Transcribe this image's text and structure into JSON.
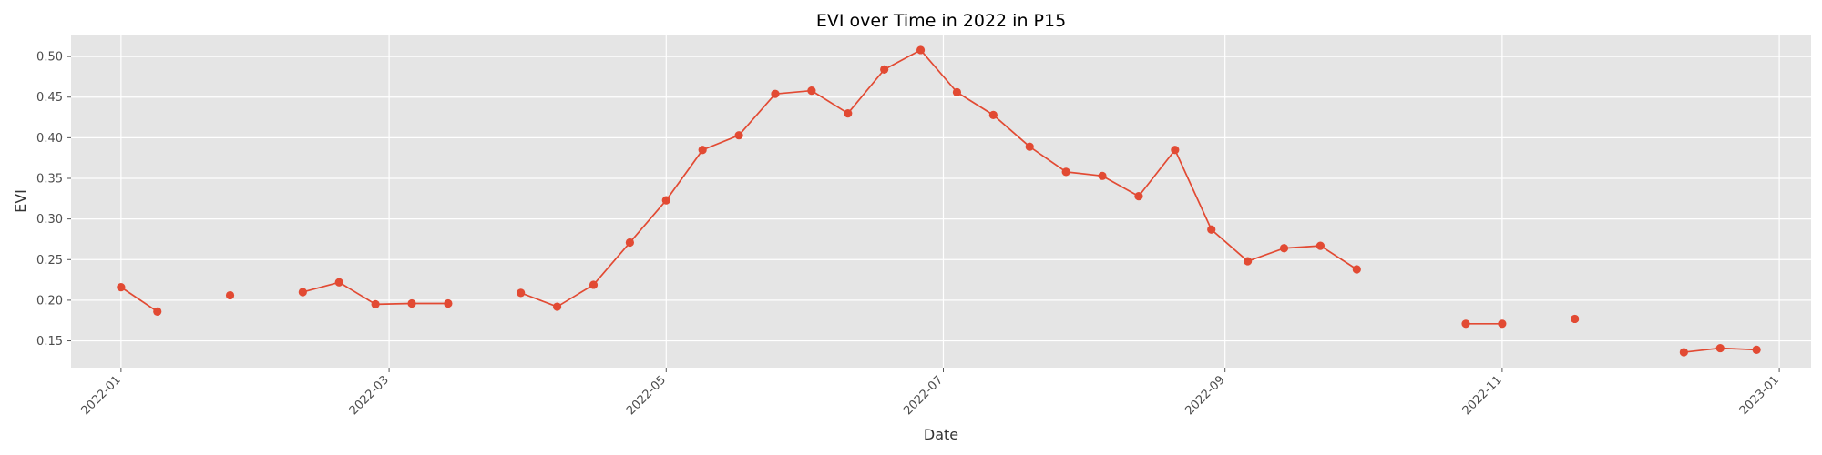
{
  "chart_data": {
    "type": "line",
    "title": "EVI over Time in 2022 in P15",
    "xlabel": "Date",
    "ylabel": "EVI",
    "xlim": [
      "2021-12-21",
      "2023-01-08"
    ],
    "ylim": [
      0.117,
      0.527
    ],
    "x_ticks": [
      "2022-01",
      "2022-03",
      "2022-05",
      "2022-07",
      "2022-09",
      "2022-11",
      "2023-01"
    ],
    "y_ticks": [
      "0.15",
      "0.20",
      "0.25",
      "0.30",
      "0.35",
      "0.40",
      "0.45",
      "0.50"
    ],
    "grid": true,
    "series": [
      {
        "color": "#e24a33",
        "points": [
          {
            "x": "2022-01-01",
            "y": 0.216
          },
          {
            "x": "2022-01-09",
            "y": 0.186
          },
          {
            "x": null,
            "y": null
          },
          {
            "x": "2022-01-25",
            "y": 0.206
          },
          {
            "x": null,
            "y": null
          },
          {
            "x": "2022-02-10",
            "y": 0.21
          },
          {
            "x": "2022-02-18",
            "y": 0.222
          },
          {
            "x": "2022-02-26",
            "y": 0.195
          },
          {
            "x": "2022-03-06",
            "y": 0.196
          },
          {
            "x": "2022-03-14",
            "y": 0.196
          },
          {
            "x": null,
            "y": null
          },
          {
            "x": "2022-03-30",
            "y": 0.209
          },
          {
            "x": "2022-04-07",
            "y": 0.192
          },
          {
            "x": "2022-04-15",
            "y": 0.219
          },
          {
            "x": "2022-04-23",
            "y": 0.271
          },
          {
            "x": "2022-05-01",
            "y": 0.323
          },
          {
            "x": "2022-05-09",
            "y": 0.385
          },
          {
            "x": "2022-05-17",
            "y": 0.403
          },
          {
            "x": "2022-05-25",
            "y": 0.454
          },
          {
            "x": "2022-06-02",
            "y": 0.458
          },
          {
            "x": "2022-06-10",
            "y": 0.43
          },
          {
            "x": "2022-06-18",
            "y": 0.484
          },
          {
            "x": "2022-06-26",
            "y": 0.508
          },
          {
            "x": "2022-07-04",
            "y": 0.456
          },
          {
            "x": "2022-07-12",
            "y": 0.428
          },
          {
            "x": "2022-07-20",
            "y": 0.389
          },
          {
            "x": "2022-07-28",
            "y": 0.358
          },
          {
            "x": "2022-08-05",
            "y": 0.353
          },
          {
            "x": "2022-08-13",
            "y": 0.328
          },
          {
            "x": "2022-08-21",
            "y": 0.385
          },
          {
            "x": "2022-08-29",
            "y": 0.287
          },
          {
            "x": "2022-09-06",
            "y": 0.248
          },
          {
            "x": "2022-09-14",
            "y": 0.264
          },
          {
            "x": "2022-09-22",
            "y": 0.267
          },
          {
            "x": "2022-09-30",
            "y": 0.238
          },
          {
            "x": null,
            "y": null
          },
          {
            "x": "2022-10-24",
            "y": 0.171
          },
          {
            "x": "2022-11-01",
            "y": 0.171
          },
          {
            "x": null,
            "y": null
          },
          {
            "x": "2022-11-17",
            "y": 0.177
          },
          {
            "x": null,
            "y": null
          },
          {
            "x": "2022-12-11",
            "y": 0.136
          },
          {
            "x": "2022-12-19",
            "y": 0.141
          },
          {
            "x": "2022-12-27",
            "y": 0.139
          }
        ]
      }
    ]
  }
}
